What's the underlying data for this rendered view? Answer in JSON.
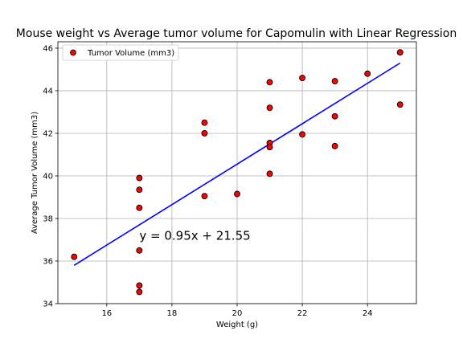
{
  "chart_data": {
    "type": "scatter",
    "title": "Mouse weight vs Average tumor volume for Capomulin with Linear Regression",
    "xlabel": "Weight (g)",
    "ylabel": "Average Tumor Volume (mm3)",
    "xlim": [
      14.5,
      25.5
    ],
    "ylim": [
      34,
      46.3
    ],
    "xticks": [
      16,
      18,
      20,
      22,
      24
    ],
    "yticks": [
      34,
      36,
      38,
      40,
      42,
      44,
      46
    ],
    "grid": true,
    "legend_position": "upper-left",
    "series": [
      {
        "name": "Tumor Volume (mm3)",
        "marker_color": "#ff0000",
        "edge_color": "#000000",
        "points": [
          [
            15,
            36.2
          ],
          [
            17,
            39.9
          ],
          [
            17,
            39.35
          ],
          [
            17,
            38.5
          ],
          [
            17,
            36.5
          ],
          [
            17,
            34.85
          ],
          [
            17,
            34.55
          ],
          [
            19,
            42.5
          ],
          [
            19,
            42.0
          ],
          [
            19,
            39.05
          ],
          [
            20,
            39.15
          ],
          [
            21,
            44.4
          ],
          [
            21,
            43.2
          ],
          [
            21,
            41.55
          ],
          [
            21,
            41.35
          ],
          [
            21,
            40.1
          ],
          [
            22,
            44.6
          ],
          [
            22,
            41.95
          ],
          [
            23,
            44.45
          ],
          [
            23,
            42.8
          ],
          [
            23,
            41.4
          ],
          [
            24,
            44.8
          ],
          [
            25,
            45.8
          ],
          [
            25,
            43.35
          ]
        ]
      }
    ],
    "regression": {
      "slope": 0.95,
      "intercept": 21.55,
      "x_range": [
        15,
        25
      ],
      "line_color": "#0000ff",
      "equation_label": "y = 0.95x + 21.55",
      "label_x": 17,
      "label_y": 37.0
    }
  }
}
